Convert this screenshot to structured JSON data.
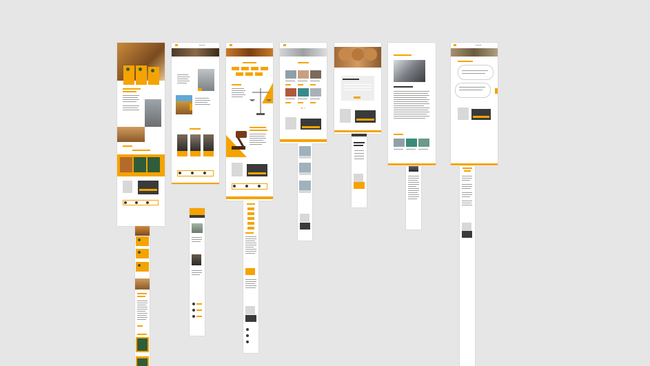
{
  "canvas": {
    "background": "#e6e6e6",
    "accent": "#f5a300",
    "dark": "#3a3a3a"
  },
  "frames": [
    {
      "id": "home-desktop"
    },
    {
      "id": "about-desktop"
    },
    {
      "id": "services-desktop"
    },
    {
      "id": "gallery-desktop"
    },
    {
      "id": "contact-desktop"
    },
    {
      "id": "article-desktop"
    },
    {
      "id": "faq-desktop"
    }
  ]
}
